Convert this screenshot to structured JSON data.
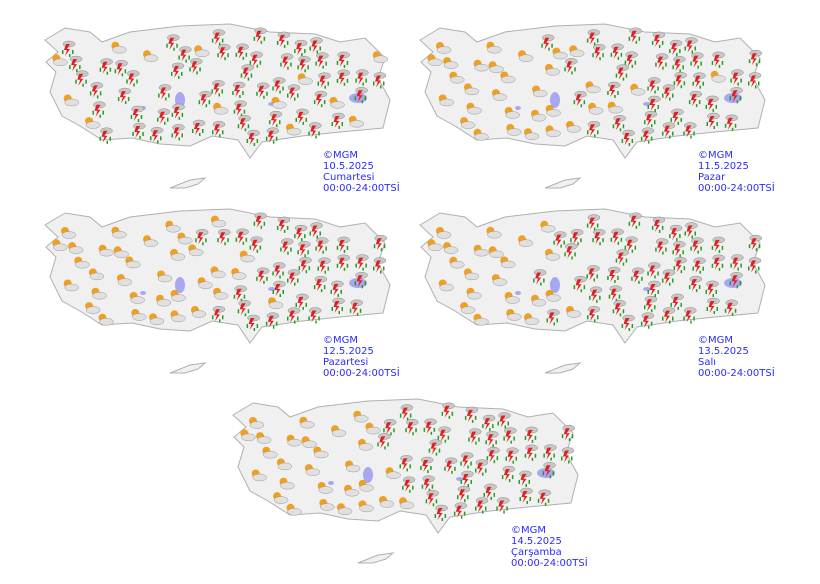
{
  "colors": {
    "land": "#f0f0f0",
    "border": "#b0b0b0",
    "lake": "#a8a8f0",
    "label": "#2b2bff",
    "bolt": "#e02020",
    "rain": "#20a020",
    "sun": "#f0a020",
    "cloud": "#c8c8c8"
  },
  "legend_codes": {
    "T": "thunderstorm-icon",
    "S": "partly-cloudy-icon"
  },
  "panels": [
    {
      "copyright": "©MGM",
      "date": "10.5.2025",
      "day": "Cumartesi",
      "time": "00:00-24:00TSİ",
      "conditions": "STSTTSTTTTSTTTTTSTTTTTTTTTTSTTTTSTTTTTTTTTTTTTSTTSTTTTSTTTTTSTTTSTTTS"
    },
    {
      "copyright": "©MGM",
      "date": "11.5.2025",
      "day": "Pazar",
      "time": "00:00-24:00TSİ",
      "conditions": "SSSSSSSSSSSSSSSSSSSSTSSSSTSSTSTTSTTSTTTTTTSTTTTTTTTTTTTTTTTTTTTSTTTTT"
    },
    {
      "copyright": "©MGM",
      "date": "12.5.2025",
      "day": "Pazartesi",
      "time": "00:00-24:00TSİ",
      "conditions": "SSSSSSSSSSSSSSSSSSSSSSSSSSSTSSSTSTSTTTSTTTTTSTTTTTTTTTTTTTTTTTTTTTTTT"
    },
    {
      "copyright": "©MGM",
      "date": "13.5.2025",
      "day": "Salı",
      "time": "00:00-24:00TSİ",
      "conditions": "SSSSSSSSSSSSSSSSSSSTSSTSTTSTTTTTTTTTTTTTTTTTTTTTTTTTTTTTTTTTTTTTTTTTT"
    },
    {
      "copyright": "©MGM",
      "date": "14.5.2025",
      "day": "Çarşamba",
      "time": "00:00-24:00TSİ",
      "conditions": "SSSSSSSSSSSSSSSSSSSSSSSSSTSTSTTSTTTTTTTTTTTTTTTTTTTTTTTTTTTTTTTTTTTTT"
    }
  ]
}
